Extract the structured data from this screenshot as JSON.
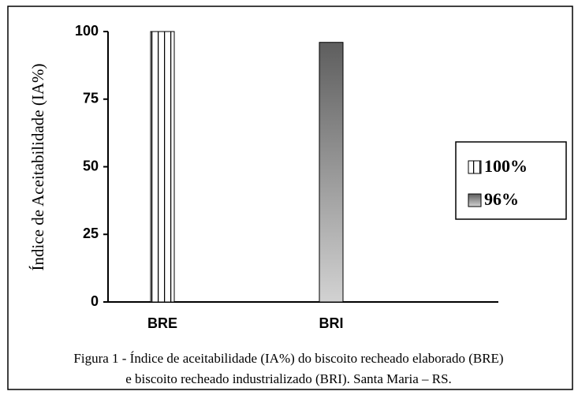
{
  "chart_data": {
    "type": "bar",
    "y_label": "Índice de Aceitabilidade (IA%)",
    "categories": [
      "BRE",
      "BRI"
    ],
    "series": [
      {
        "name": "100%",
        "color": "#ffffff",
        "fill_style": "vertical-stripes",
        "values": [
          100,
          null
        ]
      },
      {
        "name": "96%",
        "color": "#888888",
        "fill_style": "gradient",
        "values": [
          null,
          96
        ]
      }
    ],
    "ylim": [
      0,
      100
    ],
    "yticks": [
      0,
      25,
      50,
      75,
      100
    ],
    "legend": "right",
    "caption": [
      "Figura 1 - Índice de aceitabilidade (IA%) do biscoito recheado elaborado (BRE)",
      "e biscoito recheado industrializado (BRI). Santa Maria – RS."
    ]
  }
}
